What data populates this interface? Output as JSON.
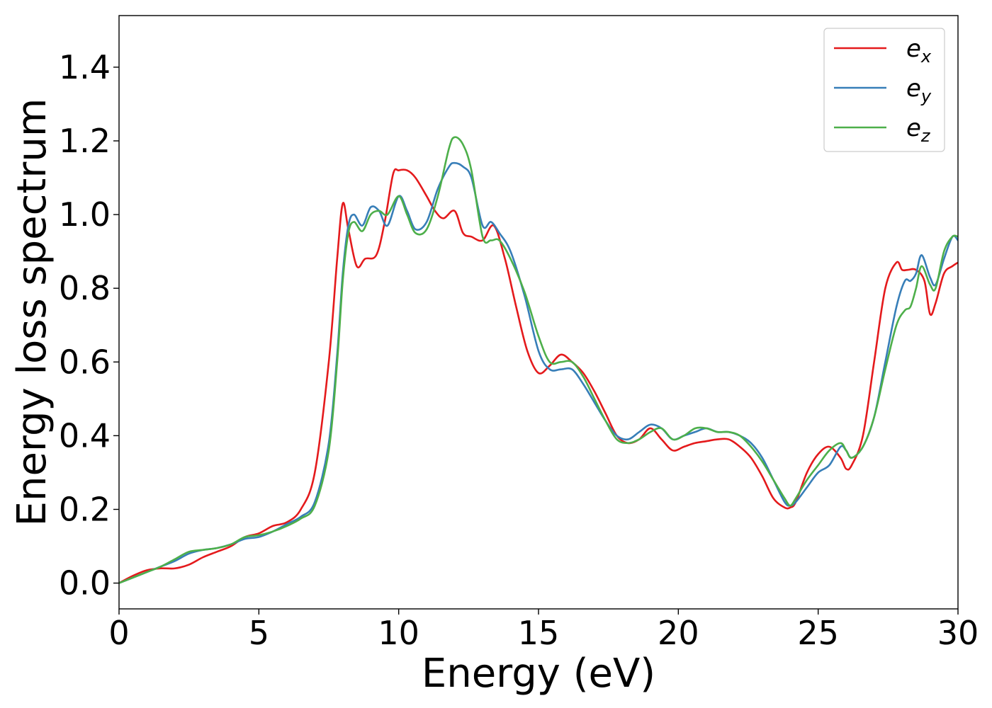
{
  "chart_data": {
    "type": "line",
    "xlabel": "Energy (eV)",
    "ylabel": "Energy loss spectrum",
    "xlim": [
      0,
      30
    ],
    "ylim": [
      -0.07,
      1.54
    ],
    "xticks": [
      0,
      5,
      10,
      15,
      20,
      25,
      30
    ],
    "xtick_labels": [
      "0",
      "5",
      "10",
      "15",
      "20",
      "25",
      "30"
    ],
    "yticks": [
      0.0,
      0.2,
      0.4,
      0.6,
      0.8,
      1.0,
      1.2,
      1.4
    ],
    "ytick_labels": [
      "0.0",
      "0.2",
      "0.4",
      "0.6",
      "0.8",
      "1.0",
      "1.2",
      "1.4"
    ],
    "grid": false,
    "legend_position": "top-right",
    "series": [
      {
        "name": "e_x",
        "legend_base": "e",
        "legend_sub": "x",
        "color": "#e41a1c",
        "x": [
          0,
          0.5,
          1,
          1.5,
          2,
          2.5,
          3,
          3.5,
          4,
          4.5,
          5,
          5.5,
          6,
          6.5,
          7,
          7.5,
          7.8,
          8,
          8.2,
          8.5,
          8.8,
          9.2,
          9.5,
          9.8,
          10,
          10.3,
          10.6,
          11,
          11.3,
          11.6,
          12,
          12.3,
          12.6,
          13,
          13.4,
          13.8,
          14.2,
          14.6,
          15,
          15.4,
          15.8,
          16.2,
          16.6,
          17,
          17.4,
          17.8,
          18.2,
          18.6,
          19,
          19.4,
          19.8,
          20.2,
          20.6,
          21,
          21.4,
          21.8,
          22.2,
          22.6,
          23,
          23.4,
          23.8,
          24,
          24.2,
          24.6,
          25,
          25.4,
          25.8,
          26,
          26.2,
          26.6,
          27,
          27.4,
          27.8,
          28,
          28.2,
          28.5,
          28.8,
          29,
          29.2,
          29.5,
          29.8,
          30
        ],
        "y": [
          0.0,
          0.02,
          0.035,
          0.04,
          0.04,
          0.05,
          0.07,
          0.085,
          0.1,
          0.125,
          0.135,
          0.155,
          0.165,
          0.2,
          0.3,
          0.6,
          0.88,
          1.03,
          0.96,
          0.86,
          0.88,
          0.89,
          0.98,
          1.11,
          1.12,
          1.12,
          1.1,
          1.05,
          1.01,
          0.99,
          1.01,
          0.95,
          0.94,
          0.93,
          0.97,
          0.88,
          0.75,
          0.63,
          0.57,
          0.59,
          0.62,
          0.6,
          0.57,
          0.52,
          0.46,
          0.4,
          0.38,
          0.39,
          0.42,
          0.39,
          0.36,
          0.37,
          0.38,
          0.385,
          0.39,
          0.39,
          0.37,
          0.34,
          0.29,
          0.23,
          0.205,
          0.205,
          0.22,
          0.3,
          0.35,
          0.37,
          0.34,
          0.31,
          0.32,
          0.4,
          0.6,
          0.8,
          0.87,
          0.85,
          0.85,
          0.85,
          0.82,
          0.73,
          0.76,
          0.84,
          0.86,
          0.87
        ]
      },
      {
        "name": "e_y",
        "legend_base": "e",
        "legend_sub": "y",
        "color": "#377eb8",
        "x": [
          0,
          0.5,
          1,
          1.5,
          2,
          2.5,
          3,
          3.5,
          4,
          4.5,
          5,
          5.5,
          6,
          6.5,
          7,
          7.5,
          7.8,
          8,
          8.2,
          8.4,
          8.7,
          9,
          9.3,
          9.6,
          10,
          10.3,
          10.6,
          11,
          11.4,
          11.8,
          12,
          12.3,
          12.6,
          13,
          13.3,
          13.6,
          14,
          14.5,
          15,
          15.4,
          15.8,
          16.2,
          16.6,
          17,
          17.4,
          17.8,
          18.2,
          18.6,
          19,
          19.4,
          19.8,
          20.2,
          20.6,
          21,
          21.4,
          21.8,
          22.2,
          22.6,
          23,
          23.4,
          23.8,
          24,
          24.2,
          24.6,
          25,
          25.4,
          25.8,
          26,
          26.2,
          26.6,
          27,
          27.4,
          27.8,
          28.1,
          28.3,
          28.5,
          28.7,
          29,
          29.2,
          29.5,
          29.8,
          30
        ],
        "y": [
          0.0,
          0.015,
          0.03,
          0.045,
          0.06,
          0.08,
          0.09,
          0.095,
          0.105,
          0.12,
          0.125,
          0.14,
          0.16,
          0.18,
          0.22,
          0.38,
          0.62,
          0.84,
          0.97,
          1.0,
          0.97,
          1.02,
          1.01,
          0.97,
          1.05,
          1.01,
          0.96,
          0.98,
          1.07,
          1.13,
          1.14,
          1.13,
          1.1,
          0.97,
          0.98,
          0.95,
          0.9,
          0.78,
          0.63,
          0.58,
          0.58,
          0.58,
          0.54,
          0.49,
          0.44,
          0.4,
          0.39,
          0.41,
          0.43,
          0.42,
          0.39,
          0.4,
          0.41,
          0.42,
          0.41,
          0.41,
          0.4,
          0.38,
          0.34,
          0.28,
          0.22,
          0.21,
          0.22,
          0.26,
          0.3,
          0.32,
          0.37,
          0.36,
          0.34,
          0.37,
          0.45,
          0.6,
          0.75,
          0.82,
          0.82,
          0.84,
          0.89,
          0.83,
          0.81,
          0.88,
          0.94,
          0.93
        ]
      },
      {
        "name": "e_z",
        "legend_base": "e",
        "legend_sub": "z",
        "color": "#4daf4a",
        "x": [
          0,
          0.5,
          1,
          1.5,
          2,
          2.5,
          3,
          3.5,
          4,
          4.5,
          5,
          5.5,
          6,
          6.5,
          7,
          7.5,
          7.8,
          8,
          8.2,
          8.4,
          8.7,
          9,
          9.3,
          9.6,
          10,
          10.3,
          10.6,
          11,
          11.4,
          11.8,
          12,
          12.3,
          12.6,
          13,
          13.3,
          13.6,
          14,
          14.5,
          15,
          15.4,
          15.8,
          16.2,
          16.6,
          17,
          17.4,
          17.8,
          18.2,
          18.6,
          19,
          19.4,
          19.8,
          20.2,
          20.6,
          21,
          21.4,
          21.8,
          22.2,
          22.6,
          23,
          23.4,
          23.8,
          24,
          24.2,
          24.6,
          25,
          25.4,
          25.8,
          26,
          26.2,
          26.6,
          27,
          27.4,
          27.8,
          28.1,
          28.3,
          28.5,
          28.7,
          29,
          29.2,
          29.5,
          29.8,
          30
        ],
        "y": [
          0.0,
          0.015,
          0.03,
          0.045,
          0.065,
          0.085,
          0.09,
          0.095,
          0.105,
          0.125,
          0.13,
          0.14,
          0.155,
          0.175,
          0.21,
          0.36,
          0.6,
          0.82,
          0.95,
          0.98,
          0.955,
          1.0,
          1.01,
          1.0,
          1.05,
          1.0,
          0.95,
          0.96,
          1.05,
          1.18,
          1.21,
          1.19,
          1.12,
          0.94,
          0.93,
          0.93,
          0.88,
          0.79,
          0.67,
          0.6,
          0.6,
          0.6,
          0.56,
          0.5,
          0.44,
          0.39,
          0.38,
          0.39,
          0.41,
          0.42,
          0.39,
          0.4,
          0.42,
          0.42,
          0.41,
          0.41,
          0.4,
          0.37,
          0.33,
          0.28,
          0.23,
          0.21,
          0.23,
          0.28,
          0.32,
          0.36,
          0.38,
          0.36,
          0.34,
          0.37,
          0.45,
          0.58,
          0.7,
          0.74,
          0.75,
          0.8,
          0.86,
          0.81,
          0.8,
          0.9,
          0.94,
          0.94
        ]
      }
    ]
  }
}
